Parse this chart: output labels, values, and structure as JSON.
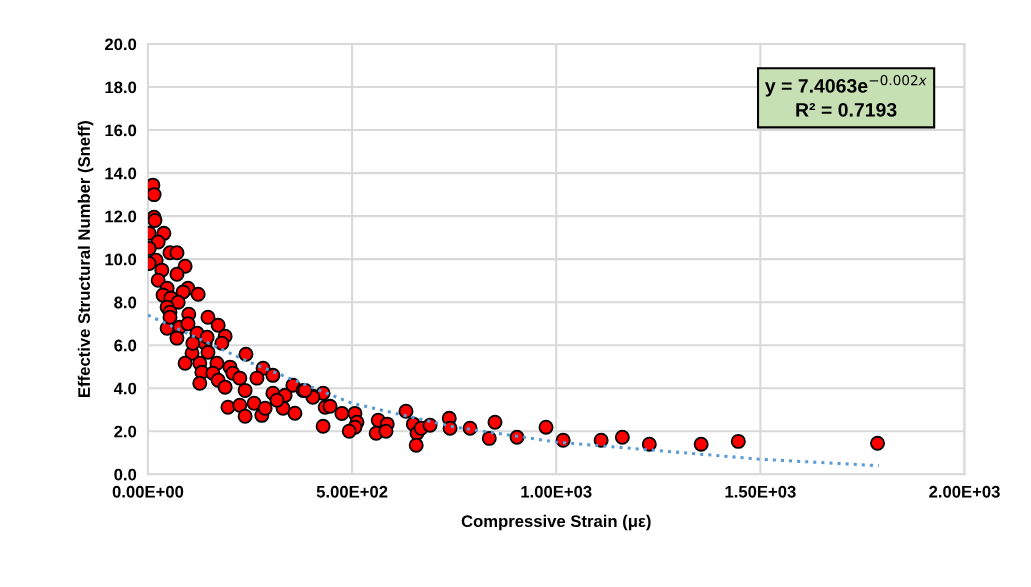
{
  "chart_data": {
    "type": "scatter",
    "xlabel": "Compressive Strain (με)",
    "ylabel": "Effective Structural Number (Sneff)",
    "xlim": [
      0,
      2000
    ],
    "ylim": [
      0,
      20
    ],
    "xticks": [
      {
        "value": 0,
        "label": "0.00E+00"
      },
      {
        "value": 500,
        "label": "5.00E+02"
      },
      {
        "value": 1000,
        "label": "1.00E+03"
      },
      {
        "value": 1500,
        "label": "1.50E+03"
      },
      {
        "value": 2000,
        "label": "2.00E+03"
      }
    ],
    "yticks": [
      {
        "value": 0,
        "label": "0.0"
      },
      {
        "value": 2,
        "label": "2.0"
      },
      {
        "value": 4,
        "label": "4.0"
      },
      {
        "value": 6,
        "label": "6.0"
      },
      {
        "value": 8,
        "label": "8.0"
      },
      {
        "value": 10,
        "label": "10.0"
      },
      {
        "value": 12,
        "label": "12.0"
      },
      {
        "value": 14,
        "label": "14.0"
      },
      {
        "value": 16,
        "label": "16.0"
      },
      {
        "value": 18,
        "label": "18.0"
      },
      {
        "value": 20,
        "label": "20.0"
      }
    ],
    "grid": true,
    "legend": false,
    "annotations": [
      "y = 7.4063e$^{−0.002x}$\nR² = 0.7193"
    ],
    "series": [
      {
        "type": "line",
        "color": "#5b9bd5",
        "marker": "none",
        "line_style": "dotted",
        "x": [
          0,
          250,
          500,
          750,
          1000,
          1250,
          1500,
          1790
        ],
        "values": [
          7.4,
          5.2,
          3.3,
          2.2,
          1.5,
          1.1,
          0.7,
          0.4
        ]
      },
      {
        "color": "#ff0000",
        "marker": "circle",
        "x": [
          12,
          15,
          15,
          17,
          3,
          39,
          25,
          3,
          54,
          71,
          20,
          3,
          91,
          34,
          71,
          25,
          47,
          98,
          37,
          86,
          123,
          56,
          74,
          47,
          54,
          100,
          147,
          47,
          78,
          120,
          172,
          189,
          71,
          140,
          181,
          108,
          147,
          91,
          127,
          169,
          240,
          201,
          132,
          159,
          208,
          127,
          172,
          225,
          282,
          267,
          306,
          238,
          189,
          306,
          336,
          355,
          380,
          404,
          196,
          225,
          260,
          238,
          279,
          287,
          331,
          360,
          434,
          316,
          54,
          98,
          145,
          110,
          429,
          446,
          475,
          507,
          512,
          507,
          493,
          564,
          586,
          559,
          583,
          632,
          650,
          659,
          657,
          669,
          691,
          738,
          740,
          789,
          850,
          836,
          904,
          975,
          1017,
          1110,
          1162,
          1228,
          1355,
          1446,
          1787,
          429,
          404,
          385
        ],
        "values": [
          13.44,
          13.0,
          11.95,
          11.8,
          11.2,
          11.2,
          10.8,
          10.5,
          10.3,
          10.3,
          9.95,
          9.8,
          9.67,
          9.49,
          9.3,
          9.02,
          8.65,
          8.65,
          8.33,
          8.47,
          8.37,
          8.19,
          8.0,
          7.77,
          7.53,
          7.44,
          7.3,
          6.79,
          6.84,
          6.56,
          6.93,
          6.42,
          6.33,
          6.09,
          6.09,
          5.63,
          5.67,
          5.16,
          5.16,
          5.16,
          5.58,
          4.98,
          4.74,
          4.7,
          4.7,
          4.23,
          4.37,
          4.47,
          4.93,
          4.47,
          4.6,
          3.9,
          4.05,
          3.77,
          3.67,
          4.14,
          3.9,
          3.63,
          3.12,
          3.21,
          3.3,
          2.7,
          2.74,
          3.07,
          3.07,
          2.84,
          3.12,
          3.44,
          7.3,
          7.0,
          6.37,
          6.09,
          2.23,
          3.16,
          2.83,
          2.83,
          2.42,
          2.19,
          2.0,
          2.51,
          2.33,
          1.91,
          2.0,
          2.93,
          2.33,
          1.91,
          1.35,
          2.14,
          2.28,
          2.6,
          2.14,
          2.14,
          2.42,
          1.67,
          1.72,
          2.19,
          1.58,
          1.58,
          1.72,
          1.4,
          1.4,
          1.53,
          1.44,
          3.77,
          3.58,
          3.9
        ]
      }
    ]
  }
}
